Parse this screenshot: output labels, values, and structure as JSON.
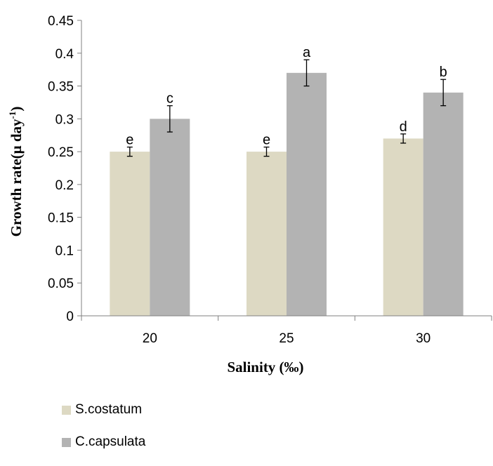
{
  "chart_data": {
    "type": "bar",
    "title": "",
    "xlabel": "Salinity (‰)",
    "ylabel_main": "Growth rate(μ day",
    "ylabel_sup": "-1",
    "ylabel_close": ")",
    "categories": [
      "20",
      "25",
      "30"
    ],
    "ylim": [
      0,
      0.45
    ],
    "yticks": [
      "0",
      "0.05",
      "0.1",
      "0.15",
      "0.2",
      "0.25",
      "0.3",
      "0.35",
      "0.4",
      "0.45"
    ],
    "series": [
      {
        "name": "S.costatum",
        "color": "#ddd9c3",
        "values": [
          0.25,
          0.25,
          0.27
        ],
        "errors": [
          0.007,
          0.007,
          0.007
        ],
        "labels": [
          "e",
          "e",
          "d"
        ]
      },
      {
        "name": "C.capsulata",
        "color": "#b3b3b3",
        "values": [
          0.3,
          0.37,
          0.34
        ],
        "errors": [
          0.02,
          0.02,
          0.02
        ],
        "labels": [
          "c",
          "a",
          "b"
        ]
      }
    ],
    "grid": false,
    "legend_position": "bottom-left"
  }
}
